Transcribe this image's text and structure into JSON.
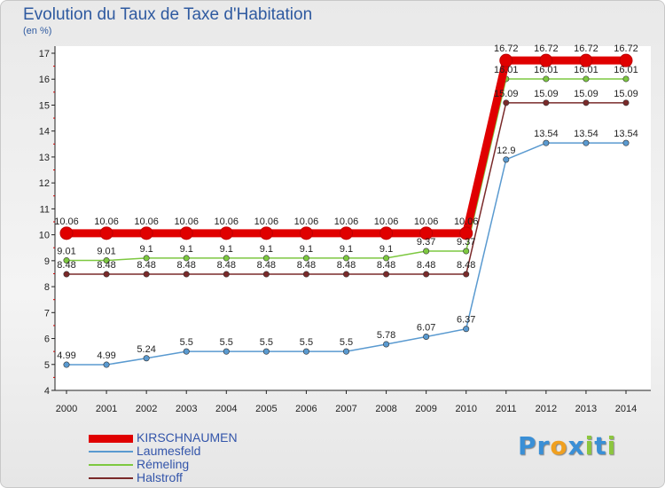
{
  "header": {
    "title": "Evolution du Taux de Taxe d'Habitation",
    "subtitle": "(en %)"
  },
  "brand": {
    "letters": [
      "P",
      "r",
      "o",
      "x",
      "i",
      "t",
      "i"
    ],
    "colors": [
      "#3a8fd6",
      "#3a8fd6",
      "#f0a020",
      "#3a8fd6",
      "#8cc63e",
      "#3a8fd6",
      "#8cc63e"
    ]
  },
  "chart_data": {
    "type": "line",
    "title": "Evolution du Taux de Taxe d'Habitation",
    "ylabel": "(en %)",
    "xlabel": "",
    "x": [
      "2000",
      "2001",
      "2002",
      "2003",
      "2004",
      "2005",
      "2006",
      "2007",
      "2008",
      "2009",
      "2010",
      "2011",
      "2012",
      "2013",
      "2014"
    ],
    "ylim": [
      4,
      17
    ],
    "yticks": [
      "4",
      "5",
      "6",
      "7",
      "8",
      "9",
      "10",
      "11",
      "12",
      "13",
      "14",
      "15",
      "16",
      "17"
    ],
    "grid": false,
    "legend": "bottom-left",
    "series": [
      {
        "name": "KIRSCHNAUMEN",
        "color": "#e00000",
        "values": [
          10.06,
          10.06,
          10.06,
          10.06,
          10.06,
          10.06,
          10.06,
          10.06,
          10.06,
          10.06,
          10.06,
          16.72,
          16.72,
          16.72,
          16.72
        ],
        "labels": [
          "10.06",
          "10.06",
          "10.06",
          "10.06",
          "10.06",
          "10.06",
          "10.06",
          "10.06",
          "10.06",
          "10.06",
          "10.06",
          "16.72",
          "16.72",
          "16.72",
          "16.72"
        ]
      },
      {
        "name": "Laumesfeld",
        "color": "#5a9ad0",
        "values": [
          4.99,
          4.99,
          5.24,
          5.5,
          5.5,
          5.5,
          5.5,
          5.5,
          5.78,
          6.07,
          6.37,
          12.9,
          13.54,
          13.54,
          13.54
        ],
        "labels": [
          "4.99",
          "4.99",
          "5.24",
          "5.5",
          "5.5",
          "5.5",
          "5.5",
          "5.5",
          "5.78",
          "6.07",
          "6.37",
          "12.9",
          "13.54",
          "13.54",
          "13.54"
        ]
      },
      {
        "name": "Rémeling",
        "color": "#7dc840",
        "values": [
          9.01,
          9.01,
          9.1,
          9.1,
          9.1,
          9.1,
          9.1,
          9.1,
          9.1,
          9.37,
          9.37,
          16.01,
          16.01,
          16.01,
          16.01
        ],
        "labels": [
          "9.01",
          "9.01",
          "9.1",
          "9.1",
          "9.1",
          "9.1",
          "9.1",
          "9.1",
          "9.1",
          "9.37",
          "9.37",
          "16.01",
          "16.01",
          "16.01",
          "16.01"
        ]
      },
      {
        "name": "Halstroff",
        "color": "#7a2a2a",
        "values": [
          8.48,
          8.48,
          8.48,
          8.48,
          8.48,
          8.48,
          8.48,
          8.48,
          8.48,
          8.48,
          8.48,
          15.09,
          15.09,
          15.09,
          15.09
        ],
        "labels": [
          "8.48",
          "8.48",
          "8.48",
          "8.48",
          "8.48",
          "8.48",
          "8.48",
          "8.48",
          "8.48",
          "8.48",
          "8.48",
          "15.09",
          "15.09",
          "15.09",
          "15.09"
        ]
      }
    ]
  }
}
